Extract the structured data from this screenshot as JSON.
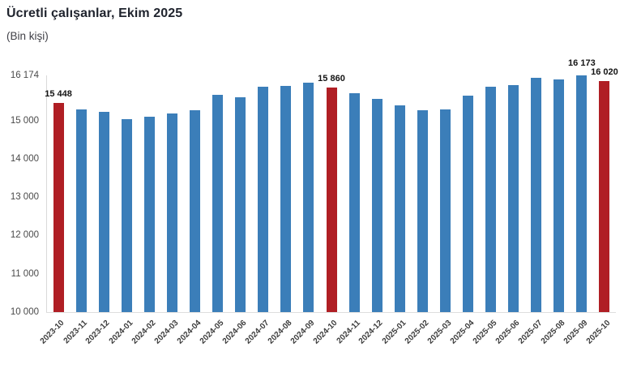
{
  "title": "Ücretli çalışanlar, Ekim 2025",
  "subtitle": "(Bin kişi)",
  "colors": {
    "bar_blue": "#3B7EB9",
    "bar_red_highlight": "#B01E24",
    "axis_line": "#D9D9D9",
    "tick_text": "#4A4A4A",
    "value_label_text": "#141414",
    "title_text": "#20242E",
    "background": "#FFFFFF"
  },
  "chart_data": {
    "type": "bar",
    "title": "Ücretli çalışanlar, Ekim 2025",
    "subtitle": "(Bin kişi)",
    "xlabel": "",
    "ylabel": "Bin kişi",
    "grid": false,
    "legend": false,
    "ylim": [
      10000,
      16174
    ],
    "yticks": [
      {
        "value": 16174,
        "label": "16 174"
      },
      {
        "value": 15000,
        "label": "15 000"
      },
      {
        "value": 14000,
        "label": "14 000"
      },
      {
        "value": 13000,
        "label": "13 000"
      },
      {
        "value": 12000,
        "label": "12 000"
      },
      {
        "value": 11000,
        "label": "11 000"
      },
      {
        "value": 10000,
        "label": "10 000"
      }
    ],
    "categories": [
      "2023-10",
      "2023-11",
      "2023-12",
      "2024-01",
      "2024-02",
      "2024-03",
      "2024-04",
      "2024-05",
      "2024-06",
      "2024-07",
      "2024-08",
      "2024-09",
      "2024-10",
      "2024-11",
      "2024-12",
      "2025-01",
      "2025-02",
      "2025-03",
      "2025-04",
      "2025-05",
      "2025-06",
      "2025-07",
      "2025-08",
      "2025-09",
      "2025-10"
    ],
    "values": [
      15448,
      15290,
      15220,
      15040,
      15090,
      15180,
      15270,
      15670,
      15610,
      15880,
      15890,
      15980,
      15860,
      15710,
      15570,
      15400,
      15270,
      15290,
      15640,
      15870,
      15920,
      16110,
      16060,
      16173,
      16020
    ],
    "highlight_indices": [
      0,
      12,
      24
    ],
    "highlight_note": "October (Ekim) bars drawn in red",
    "data_labels": [
      {
        "index": 0,
        "text": "15 448"
      },
      {
        "index": 12,
        "text": "15 860"
      },
      {
        "index": 23,
        "text": "16 173",
        "extra_gap": 4
      },
      {
        "index": 24,
        "text": "16 020"
      }
    ]
  }
}
